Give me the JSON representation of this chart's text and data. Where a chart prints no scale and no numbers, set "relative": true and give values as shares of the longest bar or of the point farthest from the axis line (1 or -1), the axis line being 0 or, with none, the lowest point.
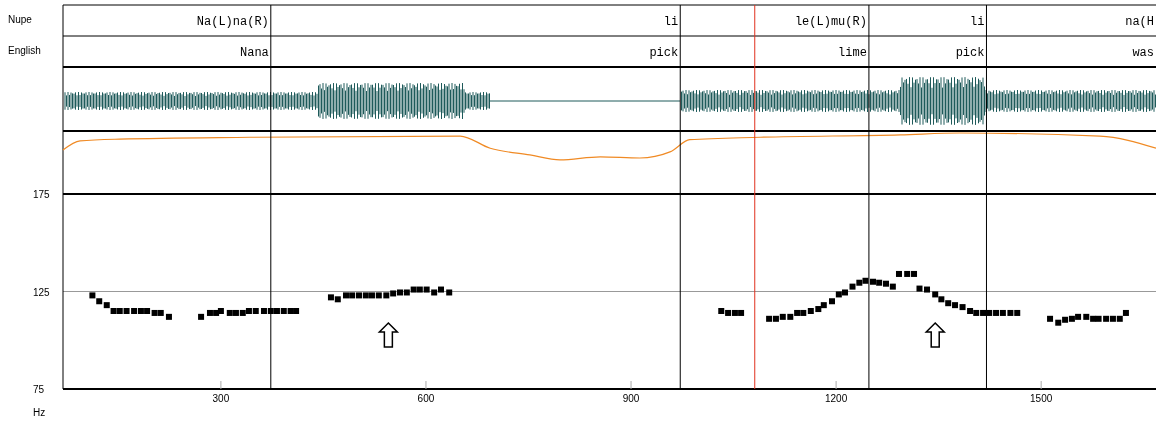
{
  "chart_data": [
    {
      "type": "line",
      "relative": true,
      "color": "#f08a24",
      "xlim": [
        69,
        1668
      ],
      "x": [
        69,
        94,
        152,
        342,
        650,
        694,
        752,
        796,
        855,
        913,
        957,
        986,
        1089,
        1294,
        1381,
        1586,
        1668
      ],
      "values": [
        0.72,
        0.87,
        0.9,
        0.93,
        0.95,
        0.75,
        0.64,
        0.56,
        0.61,
        0.59,
        0.69,
        0.89,
        0.93,
        0.97,
        1,
        0.95,
        0.75
      ]
    },
    {
      "type": "scatter",
      "ylabel": "Hz",
      "annotations": [
        "Nupe",
        "Na(L)na(R)",
        "li",
        "le(L)mu(R)",
        "li",
        "na(H",
        "English",
        "Nana",
        "pick",
        "lime",
        "pick",
        "was"
      ],
      "xlim": [
        69,
        1668
      ],
      "ylim": [
        75,
        175
      ],
      "xticks": [
        300,
        600,
        900,
        1200,
        1500
      ],
      "yticks": [
        75,
        125,
        175
      ],
      "grid": "y",
      "marker": "square",
      "color": "#000000",
      "x": [
        112,
        122,
        133,
        143,
        152,
        162,
        173,
        183,
        192,
        203,
        212,
        224,
        271,
        284,
        293,
        300,
        313,
        322,
        332,
        341,
        351,
        363,
        373,
        382,
        392,
        402,
        410,
        461,
        471,
        483,
        492,
        502,
        512,
        521,
        531,
        542,
        552,
        562,
        572,
        582,
        591,
        601,
        612,
        622,
        634,
        1032,
        1042,
        1052,
        1061,
        1102,
        1112,
        1122,
        1133,
        1143,
        1152,
        1163,
        1174,
        1182,
        1194,
        1204,
        1213,
        1224,
        1234,
        1243,
        1254,
        1263,
        1273,
        1283,
        1292,
        1304,
        1314,
        1322,
        1333,
        1345,
        1354,
        1364,
        1374,
        1385,
        1396,
        1405,
        1415,
        1424,
        1434,
        1444,
        1455,
        1465,
        1513,
        1525,
        1535,
        1545,
        1554,
        1566,
        1576,
        1584,
        1595,
        1605,
        1615,
        1624
      ],
      "values": [
        123,
        120,
        118,
        115,
        115,
        115,
        115,
        115,
        115,
        114,
        114,
        112,
        112,
        114,
        114,
        115,
        114,
        114,
        114,
        115,
        115,
        115,
        115,
        115,
        115,
        115,
        115,
        122,
        121,
        123,
        123,
        123,
        123,
        123,
        123,
        123,
        124,
        124.5,
        124.5,
        126,
        126,
        126,
        124.5,
        126,
        124.5,
        115,
        114,
        114,
        114,
        111,
        111,
        112,
        112,
        114,
        114,
        115,
        116,
        118,
        120,
        123.5,
        124.5,
        127.5,
        129.5,
        130.5,
        130,
        129.5,
        129,
        127.5,
        134,
        134,
        134,
        126.5,
        126,
        123.5,
        121,
        119,
        118,
        117,
        115,
        114,
        114,
        114,
        114,
        114,
        114,
        114,
        111,
        109,
        110.5,
        111,
        112,
        112,
        111,
        111,
        111,
        111,
        111,
        114
      ],
      "ref_lines": [
        {
          "axis": "x",
          "value": 373,
          "color": "#000000"
        },
        {
          "axis": "x",
          "value": 972,
          "color": "#000000"
        },
        {
          "axis": "x",
          "value": 1081,
          "color": "#e0301e"
        },
        {
          "axis": "x",
          "value": 1248,
          "color": "#000000"
        },
        {
          "axis": "x",
          "value": 1420,
          "color": "#000000"
        }
      ]
    }
  ]
}
